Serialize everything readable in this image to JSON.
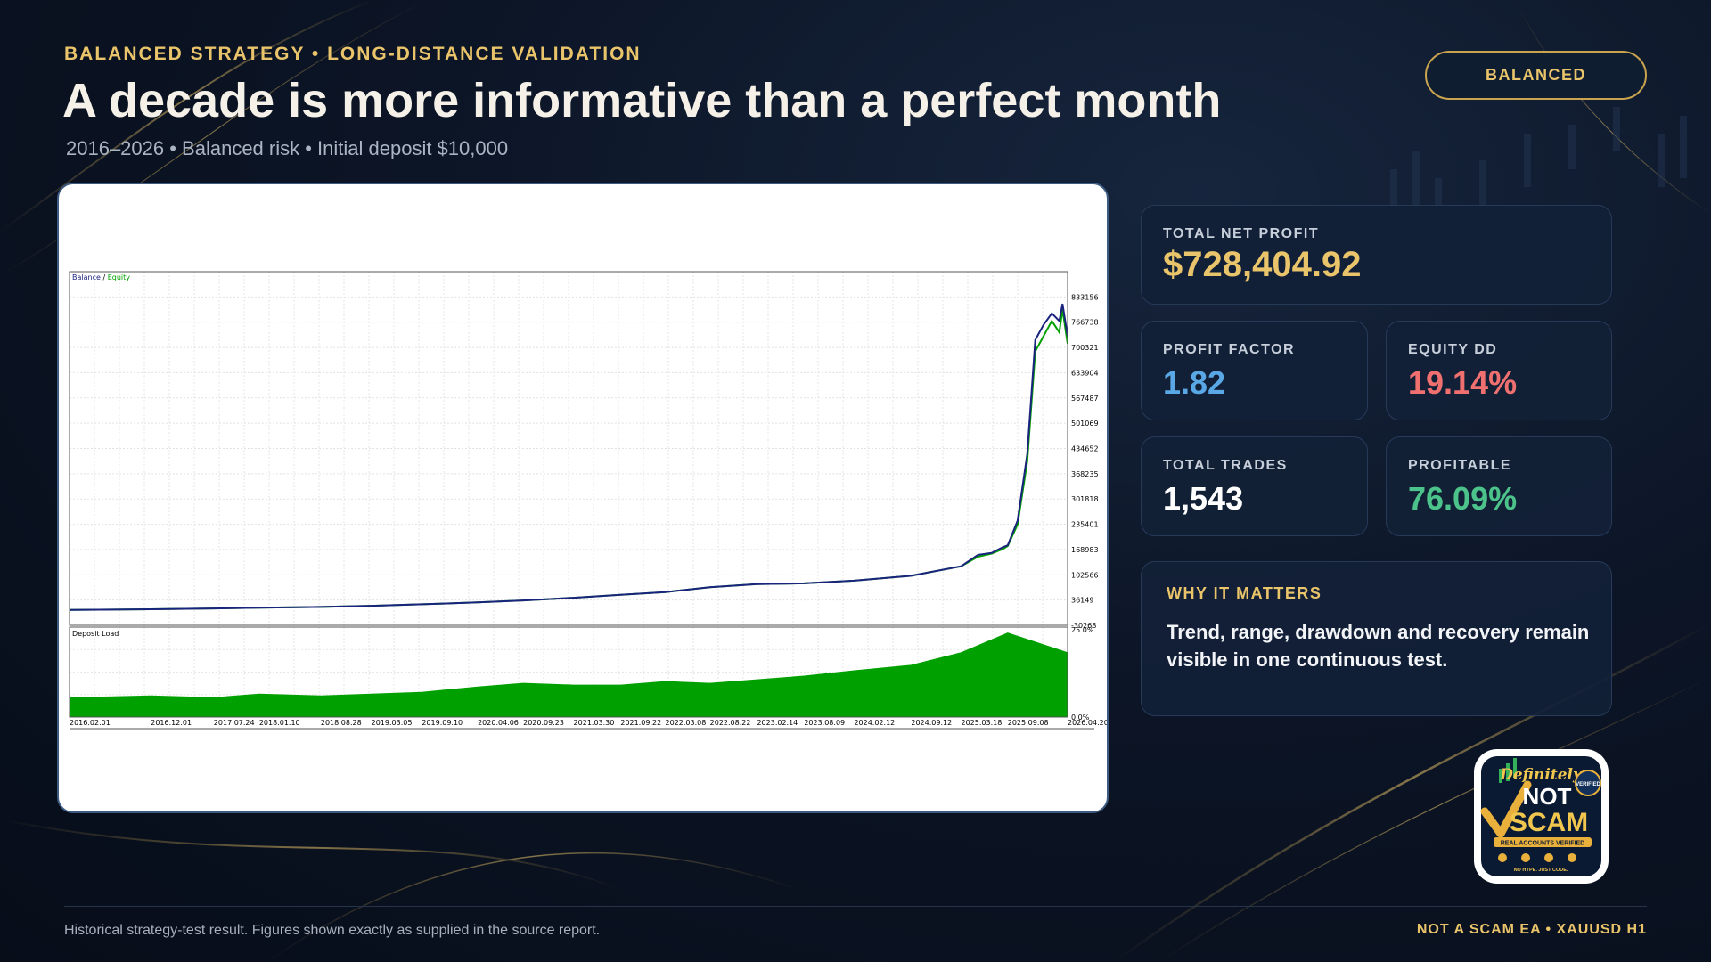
{
  "header": {
    "eyebrow": "BALANCED STRATEGY • LONG-DISTANCE VALIDATION",
    "title": "A decade is more informative than a perfect month",
    "subtitle": "2016–2026 • Balanced risk • Initial deposit $10,000",
    "badge": "BALANCED"
  },
  "stats": {
    "net_profit": {
      "label": "TOTAL NET PROFIT",
      "value": "$728,404.92"
    },
    "profit_factor": {
      "label": "PROFIT FACTOR",
      "value": "1.82"
    },
    "equity_dd": {
      "label": "EQUITY DD",
      "value": "19.14%"
    },
    "total_trades": {
      "label": "TOTAL TRADES",
      "value": "1,543"
    },
    "profitable": {
      "label": "PROFITABLE",
      "value": "76.09%"
    }
  },
  "why": {
    "title": "WHY IT MATTERS",
    "text": "Trend, range, drawdown and recovery remain visible in one continuous test."
  },
  "logo": {
    "icon": "not-scam-seal-icon",
    "lines": [
      "Definitely",
      "NOT",
      "SCAM",
      "VERIFIED",
      "REAL ACCOUNTS VERIFIED",
      "NO HYPE. JUST CODE."
    ]
  },
  "footer": {
    "left": "Historical strategy-test result. Figures shown exactly as supplied in the source report.",
    "right": "NOT A SCAM EA • XAUUSD H1"
  },
  "colors": {
    "gold": "#e9c46a",
    "profit_factor": "#5aa7e6",
    "equity_dd": "#f07070",
    "profitable": "#4cc38a",
    "balance_line": "#1a237e",
    "equity_line": "#00a000",
    "deposit_load": "#00a000"
  },
  "chart_data": [
    {
      "type": "line",
      "legend": [
        "Balance",
        "Equity"
      ],
      "series": [
        {
          "name": "Balance",
          "x": [
            "2016.02.01",
            "2016.12.01",
            "2017.07.24",
            "2018.01.10",
            "2018.08.28",
            "2019.03.05",
            "2019.09.10",
            "2020.04.06",
            "2020.09.23",
            "2021.03.30",
            "2021.09.22",
            "2022.03.08",
            "2022.08.22",
            "2023.02.14",
            "2023.08.09",
            "2024.02.12",
            "2024.09.12",
            "2025.03.18",
            "2025.05.20",
            "2025.07.10",
            "2025.08.20",
            "2025.09.08",
            "2025.10.15",
            "2025.11.20",
            "2025.12.20",
            "2026.01.20",
            "2026.02.20",
            "2026.03.20",
            "2026.04.01",
            "2026.04.20"
          ],
          "values": [
            10000,
            12000,
            14000,
            16000,
            18000,
            21000,
            25000,
            30000,
            35000,
            42000,
            50000,
            57000,
            70000,
            78000,
            80000,
            87000,
            100000,
            125000,
            155000,
            160000,
            175000,
            180000,
            245000,
            420000,
            720000,
            760000,
            790000,
            770000,
            815000,
            730000
          ]
        },
        {
          "name": "Equity",
          "x": [
            "2016.02.01",
            "2016.12.01",
            "2017.07.24",
            "2018.01.10",
            "2018.08.28",
            "2019.03.05",
            "2019.09.10",
            "2020.04.06",
            "2020.09.23",
            "2021.03.30",
            "2021.09.22",
            "2022.03.08",
            "2022.08.22",
            "2023.02.14",
            "2023.08.09",
            "2024.02.12",
            "2024.09.12",
            "2025.03.18",
            "2025.05.20",
            "2025.07.10",
            "2025.08.20",
            "2025.09.08",
            "2025.10.15",
            "2025.11.20",
            "2025.12.20",
            "2026.01.20",
            "2026.02.20",
            "2026.03.20",
            "2026.04.01",
            "2026.04.20"
          ],
          "values": [
            10000,
            12000,
            14000,
            16000,
            18000,
            21000,
            25000,
            30000,
            35000,
            42000,
            50000,
            57000,
            70000,
            78000,
            80000,
            87000,
            100000,
            125000,
            150000,
            158000,
            170000,
            178000,
            235000,
            400000,
            690000,
            730000,
            770000,
            740000,
            800000,
            710000
          ]
        }
      ],
      "y_ticks": [
        "833156",
        "766738",
        "700321",
        "633904",
        "567487",
        "501069",
        "434652",
        "368235",
        "301818",
        "235401",
        "168983",
        "102566",
        "36149",
        "-30268"
      ],
      "ylim": [
        -30268,
        899573
      ],
      "grid": true,
      "legend_position": "top-left"
    },
    {
      "type": "area",
      "title": "Deposit Load",
      "x_ticks": [
        "2016.02.01",
        "2016.12.01",
        "2017.07.24",
        "2018.01.10",
        "2018.08.28",
        "2019.03.05",
        "2019.09.10",
        "2020.04.06",
        "2020.09.23",
        "2021.03.30",
        "2021.09.22",
        "2022.03.08",
        "2022.08.22",
        "2023.02.14",
        "2023.08.09",
        "2024.02.12",
        "2024.09.12",
        "2025.03.18",
        "2025.09.08",
        "2026.04.20"
      ],
      "values": [
        5.5,
        6,
        5.5,
        6.5,
        6,
        6.5,
        7,
        8.5,
        9.5,
        9,
        9,
        10,
        9.5,
        10.5,
        11.5,
        13,
        14.5,
        18,
        23.5,
        18
      ],
      "y_ticks": [
        "25.0%",
        "0.0%"
      ],
      "ylim": [
        0,
        25
      ],
      "grid": true
    }
  ]
}
